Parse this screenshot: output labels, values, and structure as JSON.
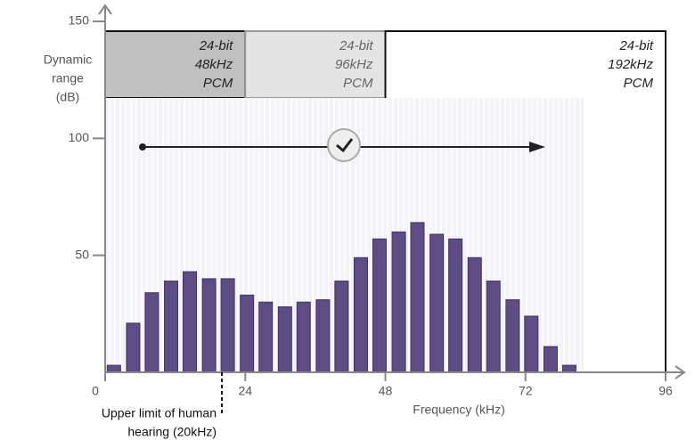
{
  "chart_data": {
    "type": "bar",
    "y_label": [
      "Dynamic",
      "range",
      "(dB)"
    ],
    "x_label": "Frequency (kHz)",
    "x": [
      1.5,
      4.8,
      8.0,
      11.3,
      14.5,
      17.8,
      21.0,
      24.3,
      27.5,
      30.8,
      34.0,
      37.3,
      40.5,
      43.8,
      47.0,
      50.3,
      53.5,
      56.8,
      60.0,
      63.3,
      66.5,
      69.8,
      73.0,
      76.3,
      79.5
    ],
    "values": [
      3,
      21,
      34,
      39,
      43,
      40,
      40,
      33,
      30,
      28,
      30,
      31,
      39,
      49,
      57,
      60,
      64,
      59,
      57,
      49,
      39,
      31,
      24,
      11,
      3
    ],
    "color": "#5e4d85",
    "xlim": [
      0,
      96
    ],
    "xticks": [
      0,
      24,
      48,
      72,
      96
    ],
    "ylim": [
      0,
      150
    ],
    "yticks": [
      50,
      100,
      150
    ],
    "formats": [
      {
        "lines": [
          "24-bit",
          "48kHz",
          "PCM"
        ],
        "x_end": 24,
        "color": "#c0c0c0"
      },
      {
        "lines": [
          "24-bit",
          "96kHz",
          "PCM"
        ],
        "x_end": 48,
        "color": "#e4e4e4"
      },
      {
        "lines": [
          "24-bit",
          "192kHz",
          "PCM"
        ],
        "x_end": 96,
        "color": "#ffffff"
      }
    ],
    "annotation": {
      "lines": [
        "Upper limit of human",
        "hearing (20kHz)"
      ],
      "x": 20
    }
  }
}
